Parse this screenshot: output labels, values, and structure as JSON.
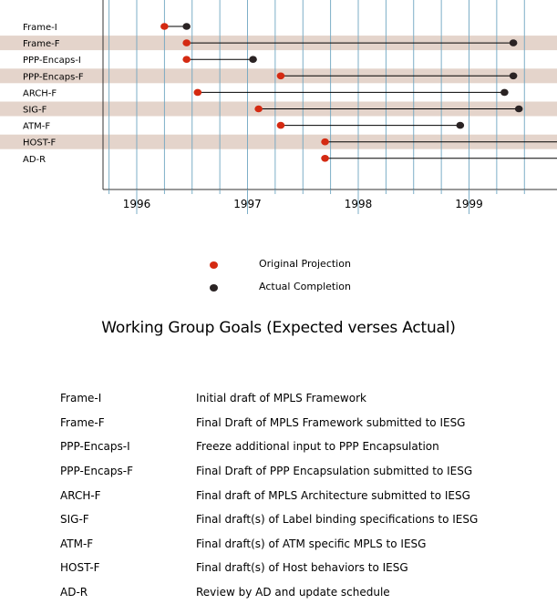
{
  "chart_data": {
    "type": "dumbbell",
    "title": "Working Group Goals (Expected verses Actual)",
    "xlabel": "",
    "ylabel": "",
    "x_range": [
      1995.6,
      1999.72
    ],
    "x_ticks": [
      1996,
      1997,
      1998,
      1999
    ],
    "x_tick_labels": [
      "1996",
      "1997",
      "1998",
      "1999"
    ],
    "grid": "vertical",
    "categories": [
      "Frame-I",
      "Frame-F",
      "PPP-Encaps-I",
      "PPP-Encaps-F",
      "ARCH-F",
      "SIG-F",
      "ATM-F",
      "HOST-F",
      "AD-R"
    ],
    "series": [
      {
        "name": "Original Projection",
        "color": "#d42a12",
        "values": [
          1996.25,
          1996.45,
          1996.45,
          1997.3,
          1996.55,
          1997.1,
          1997.3,
          1997.7,
          1997.7
        ]
      },
      {
        "name": "Actual Completion",
        "color": "#2a2324",
        "values": [
          1996.45,
          1999.4,
          1997.05,
          1999.4,
          1999.32,
          1999.45,
          1998.92,
          null,
          null
        ]
      }
    ],
    "shaded_rows": [
      false,
      true,
      false,
      true,
      false,
      true,
      false,
      true,
      false
    ]
  },
  "legend": [
    {
      "label": "Original Projection",
      "color": "#d42a12"
    },
    {
      "label": "Actual Completion",
      "color": "#2a2324"
    }
  ],
  "descriptions": [
    {
      "key": "Frame-I",
      "text": "Initial draft of MPLS Framework"
    },
    {
      "key": "Frame-F",
      "text": "Final Draft of MPLS Framework submitted to IESG"
    },
    {
      "key": "PPP-Encaps-I",
      "text": "Freeze additional input to PPP Encapsulation"
    },
    {
      "key": "PPP-Encaps-F",
      "text": "Final Draft of PPP Encapsulation submitted to IESG"
    },
    {
      "key": "ARCH-F",
      "text": "Final draft of MPLS Architecture submitted to IESG"
    },
    {
      "key": "SIG-F",
      "text": "Final draft(s) of Label binding specifications to IESG"
    },
    {
      "key": "ATM-F",
      "text": "Final draft(s) of ATM specific MPLS to IESG"
    },
    {
      "key": "HOST-F",
      "text": "Final draft(s) of Host behaviors to IESG"
    },
    {
      "key": "AD-R",
      "text": "Review by AD and update schedule"
    }
  ]
}
